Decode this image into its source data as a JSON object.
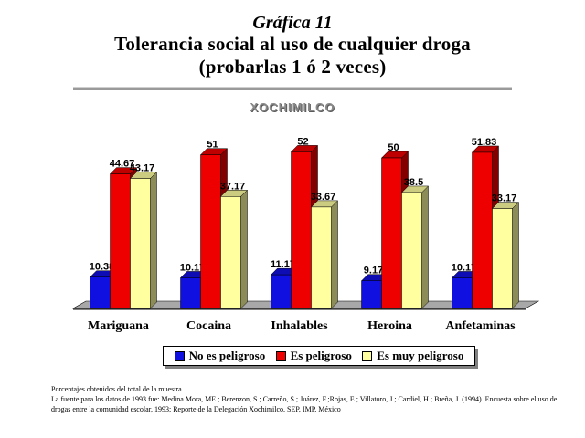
{
  "heading": {
    "kicker": "Gráfica 11",
    "title_line1": "Tolerancia social al uso de cualquier droga",
    "title_line2": "(probarlas 1 ó 2 veces)"
  },
  "chart_data": {
    "type": "bar",
    "title": "XOCHIMILCO",
    "categories": [
      "Mariguana",
      "Cocaina",
      "Inhalables",
      "Heroina",
      "Anfetaminas"
    ],
    "series": [
      {
        "name": "No es peligroso",
        "color": "#1010e0",
        "values": [
          10.38,
          10.17,
          11.17,
          9.17,
          10.17
        ]
      },
      {
        "name": "Es peligroso",
        "color": "#ee0000",
        "values": [
          44.67,
          51,
          52,
          50,
          51.83
        ]
      },
      {
        "name": "Es muy peligroso",
        "color": "#ffffa0",
        "values": [
          43.17,
          37.17,
          33.67,
          38.5,
          33.17
        ]
      }
    ],
    "ylim": [
      0,
      60
    ],
    "grid": false,
    "legend_position": "bottom",
    "view": "3d"
  },
  "notes": {
    "line1": "Porcentajes obtenidos del total de la muestra.",
    "line2": "La fuente para los datos de 1993 fue: Medina Mora, ME.; Berenzon, S.; Carreño, S.; Juárez, F.;Rojas, E.; Villatoro, J.; Cardiel, H.; Breña, J. (1994). Encuesta sobre el uso de drogas entre la comunidad escolar, 1993; Reporte de la Delegación Xochimilco. SEP, IMP, México"
  }
}
